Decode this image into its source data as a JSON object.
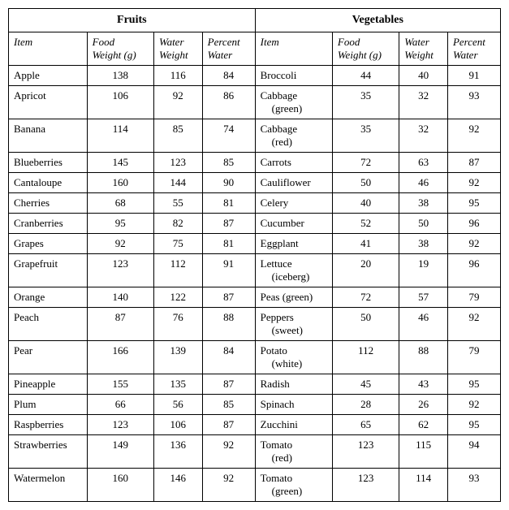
{
  "type": "table",
  "background_color": "#ffffff",
  "border_color": "#000000",
  "font_family": "Times New Roman",
  "groups": [
    {
      "title": "Fruits"
    },
    {
      "title": "Vegetables"
    }
  ],
  "columns": [
    {
      "label": "Item"
    },
    {
      "label_l1": "Food",
      "label_l2": "Weight (g)"
    },
    {
      "label_l1": "Water",
      "label_l2": "Weight"
    },
    {
      "label_l1": "Percent",
      "label_l2": "Water"
    },
    {
      "label": "Item"
    },
    {
      "label_l1": "Food",
      "label_l2": "Weight (g)"
    },
    {
      "label_l1": "Water",
      "label_l2": "Weight"
    },
    {
      "label_l1": "Percent",
      "label_l2": "Water"
    }
  ],
  "rows": [
    {
      "f_item": "Apple",
      "f_item2": "",
      "f_fw": "138",
      "f_ww": "116",
      "f_pw": "84",
      "v_item": "Broccoli",
      "v_item2": "",
      "v_fw": "44",
      "v_ww": "40",
      "v_pw": "91"
    },
    {
      "f_item": "Apricot",
      "f_item2": "",
      "f_fw": "106",
      "f_ww": "92",
      "f_pw": "86",
      "v_item": "Cabbage",
      "v_item2": "(green)",
      "v_fw": "35",
      "v_ww": "32",
      "v_pw": "93"
    },
    {
      "f_item": "Banana",
      "f_item2": "",
      "f_fw": "114",
      "f_ww": "85",
      "f_pw": "74",
      "v_item": "Cabbage",
      "v_item2": "(red)",
      "v_fw": "35",
      "v_ww": "32",
      "v_pw": "92"
    },
    {
      "f_item": "Blueberries",
      "f_item2": "",
      "f_fw": "145",
      "f_ww": "123",
      "f_pw": "85",
      "v_item": "Carrots",
      "v_item2": "",
      "v_fw": "72",
      "v_ww": "63",
      "v_pw": "87"
    },
    {
      "f_item": "Cantaloupe",
      "f_item2": "",
      "f_fw": "160",
      "f_ww": "144",
      "f_pw": "90",
      "v_item": "Cauliflower",
      "v_item2": "",
      "v_fw": "50",
      "v_ww": "46",
      "v_pw": "92"
    },
    {
      "f_item": "Cherries",
      "f_item2": "",
      "f_fw": "68",
      "f_ww": "55",
      "f_pw": "81",
      "v_item": "Celery",
      "v_item2": "",
      "v_fw": "40",
      "v_ww": "38",
      "v_pw": "95"
    },
    {
      "f_item": "Cranberries",
      "f_item2": "",
      "f_fw": "95",
      "f_ww": "82",
      "f_pw": "87",
      "v_item": "Cucumber",
      "v_item2": "",
      "v_fw": "52",
      "v_ww": "50",
      "v_pw": "96"
    },
    {
      "f_item": "Grapes",
      "f_item2": "",
      "f_fw": "92",
      "f_ww": "75",
      "f_pw": "81",
      "v_item": "Eggplant",
      "v_item2": "",
      "v_fw": "41",
      "v_ww": "38",
      "v_pw": "92"
    },
    {
      "f_item": "Grapefruit",
      "f_item2": "",
      "f_fw": "123",
      "f_ww": "112",
      "f_pw": "91",
      "v_item": "Lettuce",
      "v_item2": "(iceberg)",
      "v_fw": "20",
      "v_ww": "19",
      "v_pw": "96"
    },
    {
      "f_item": "Orange",
      "f_item2": "",
      "f_fw": "140",
      "f_ww": "122",
      "f_pw": "87",
      "v_item": "Peas (green)",
      "v_item2": "",
      "v_fw": "72",
      "v_ww": "57",
      "v_pw": "79"
    },
    {
      "f_item": "Peach",
      "f_item2": "",
      "f_fw": "87",
      "f_ww": "76",
      "f_pw": "88",
      "v_item": "Peppers",
      "v_item2": "(sweet)",
      "v_fw": "50",
      "v_ww": "46",
      "v_pw": "92"
    },
    {
      "f_item": "Pear",
      "f_item2": "",
      "f_fw": "166",
      "f_ww": "139",
      "f_pw": "84",
      "v_item": "Potato",
      "v_item2": "(white)",
      "v_fw": "112",
      "v_ww": "88",
      "v_pw": "79"
    },
    {
      "f_item": "Pineapple",
      "f_item2": "",
      "f_fw": "155",
      "f_ww": "135",
      "f_pw": "87",
      "v_item": "Radish",
      "v_item2": "",
      "v_fw": "45",
      "v_ww": "43",
      "v_pw": "95"
    },
    {
      "f_item": "Plum",
      "f_item2": "",
      "f_fw": "66",
      "f_ww": "56",
      "f_pw": "85",
      "v_item": "Spinach",
      "v_item2": "",
      "v_fw": "28",
      "v_ww": "26",
      "v_pw": "92"
    },
    {
      "f_item": "Raspberries",
      "f_item2": "",
      "f_fw": "123",
      "f_ww": "106",
      "f_pw": "87",
      "v_item": "Zucchini",
      "v_item2": "",
      "v_fw": "65",
      "v_ww": "62",
      "v_pw": "95"
    },
    {
      "f_item": "Strawberries",
      "f_item2": "",
      "f_fw": "149",
      "f_ww": "136",
      "f_pw": "92",
      "v_item": "Tomato",
      "v_item2": "(red)",
      "v_fw": "123",
      "v_ww": "115",
      "v_pw": "94"
    },
    {
      "f_item": "Watermelon",
      "f_item2": "",
      "f_fw": "160",
      "f_ww": "146",
      "f_pw": "92",
      "v_item": "Tomato",
      "v_item2": "(green)",
      "v_fw": "123",
      "v_ww": "114",
      "v_pw": "93"
    }
  ]
}
